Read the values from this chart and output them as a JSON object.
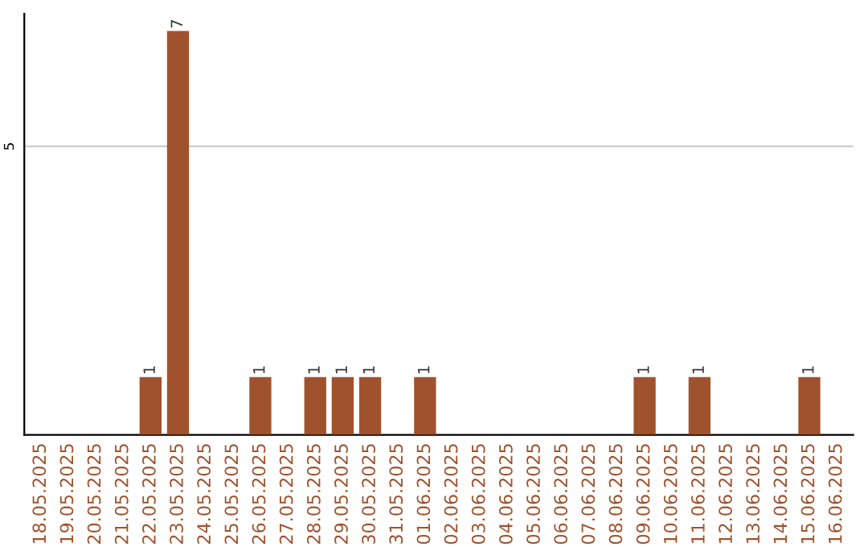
{
  "chart_data": {
    "type": "bar",
    "categories": [
      "18.05.2025",
      "19.05.2025",
      "20.05.2025",
      "21.05.2025",
      "22.05.2025",
      "23.05.2025",
      "24.05.2025",
      "25.05.2025",
      "26.05.2025",
      "27.05.2025",
      "28.05.2025",
      "29.05.2025",
      "30.05.2025",
      "31.05.2025",
      "01.06.2025",
      "02.06.2025",
      "03.06.2025",
      "04.06.2025",
      "05.06.2025",
      "06.06.2025",
      "07.06.2025",
      "08.06.2025",
      "09.06.2025",
      "10.06.2025",
      "11.06.2025",
      "12.06.2025",
      "13.06.2025",
      "14.06.2025",
      "15.06.2025",
      "16.06.2025"
    ],
    "values": [
      0,
      0,
      0,
      0,
      1,
      7,
      0,
      0,
      1,
      0,
      1,
      1,
      1,
      0,
      1,
      0,
      0,
      0,
      0,
      0,
      0,
      0,
      1,
      0,
      1,
      0,
      0,
      0,
      1,
      0
    ],
    "value_labels": [
      null,
      null,
      null,
      null,
      "1",
      "7",
      null,
      null,
      "1",
      null,
      "1",
      "1",
      "1",
      null,
      "1",
      null,
      null,
      null,
      null,
      null,
      null,
      null,
      "1",
      null,
      "1",
      null,
      null,
      null,
      "1",
      null
    ],
    "color": "#a0522d",
    "ylim": [
      0,
      7.3
    ],
    "yticks": [
      5
    ],
    "grid": "y",
    "legend": false
  }
}
